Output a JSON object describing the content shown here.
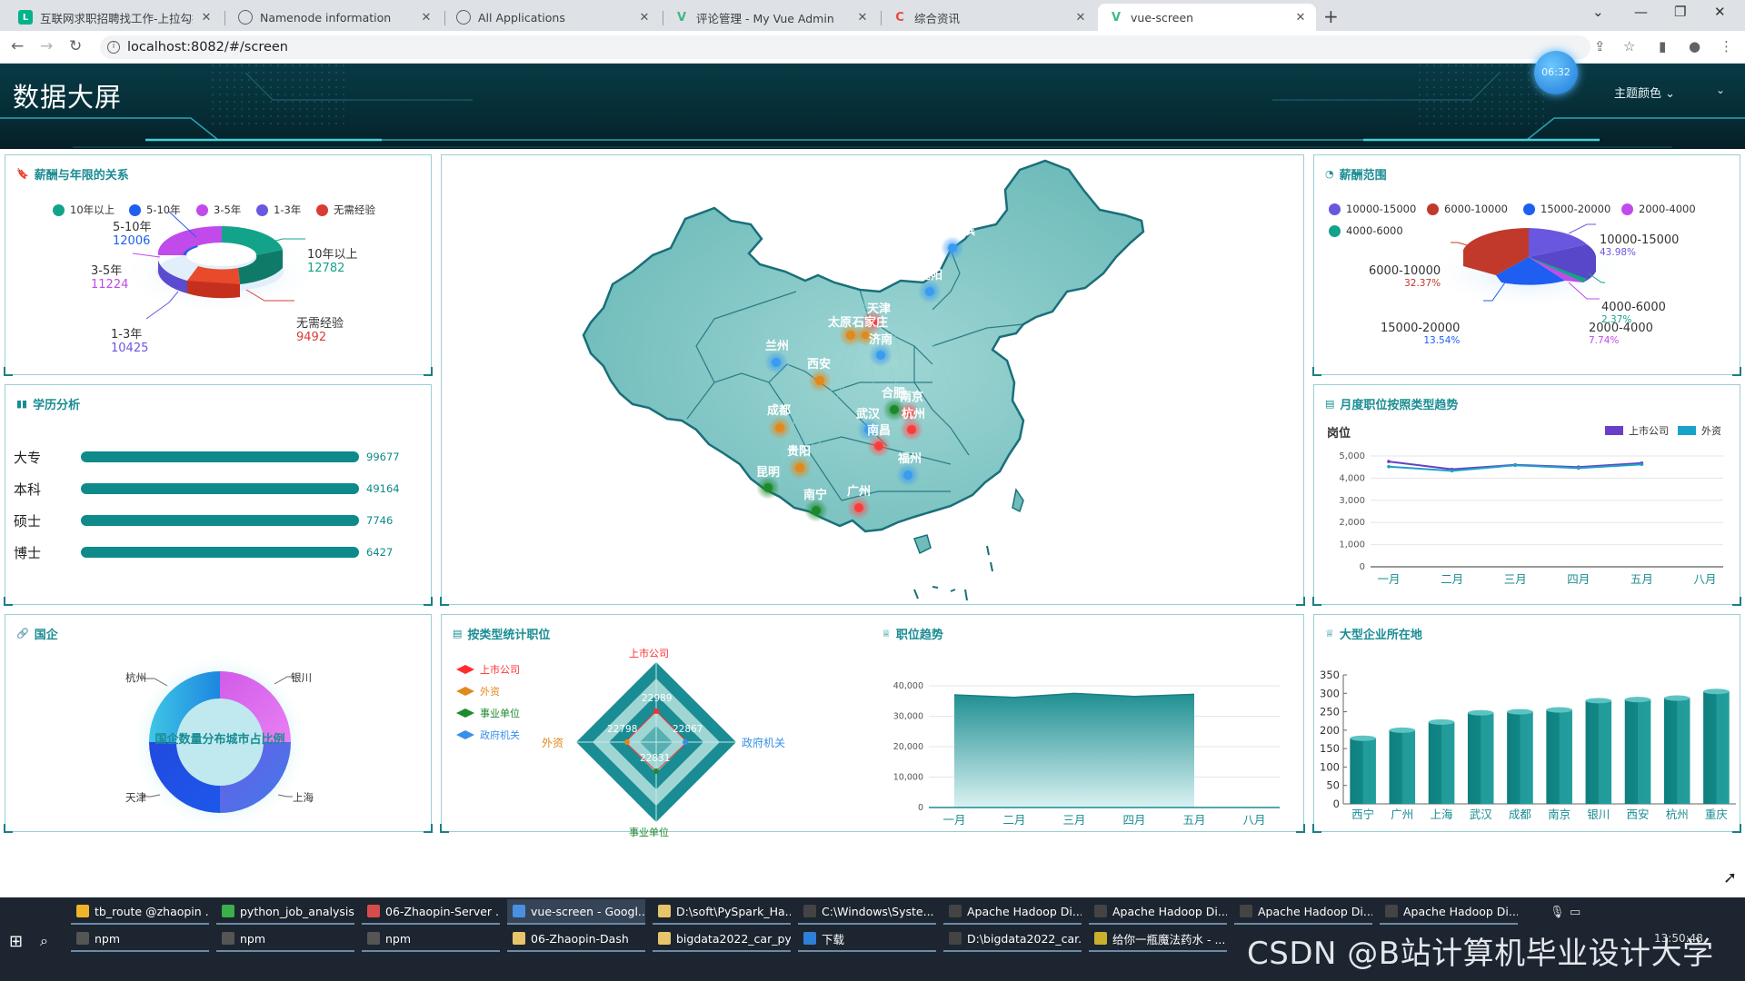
{
  "browser": {
    "tabs": [
      {
        "title": "互联网求职招聘找工作-上拉勾招",
        "icon": "L",
        "color": "#00b38a"
      },
      {
        "title": "Namenode information",
        "icon": "globe",
        "color": "#5f6368"
      },
      {
        "title": "All Applications",
        "icon": "globe",
        "color": "#5f6368"
      },
      {
        "title": "评论管理 - My Vue Admin",
        "icon": "V",
        "color": "#41b883"
      },
      {
        "title": "综合资讯",
        "icon": "C",
        "color": "#e74c3c"
      },
      {
        "title": "vue-screen",
        "icon": "V",
        "color": "#41b883"
      }
    ],
    "active_tab": 5,
    "url": "localhost:8082/#/screen"
  },
  "header": {
    "title": "数据大屏",
    "clock": "06:32",
    "theme_label": "主题颜色"
  },
  "salary_years": {
    "title": "薪酬与年限的关系",
    "legend": [
      "10年以上",
      "5-10年",
      "3-5年",
      "1-3年",
      "无需经验"
    ],
    "colors": [
      "#13a38a",
      "#1e5ef0",
      "#c04bea",
      "#6a57e0",
      "#d93c36"
    ],
    "labels": [
      {
        "name": "5-10年",
        "value": "12006"
      },
      {
        "name": "10年以上",
        "value": "12782"
      },
      {
        "name": "3-5年",
        "value": "11224"
      },
      {
        "name": "无需经验",
        "value": "9492"
      },
      {
        "name": "1-3年",
        "value": "10425"
      }
    ]
  },
  "education": {
    "title": "学历分析",
    "rows": [
      {
        "name": "大专",
        "value": "99677"
      },
      {
        "name": "本科",
        "value": "49164"
      },
      {
        "name": "硕士",
        "value": "7746"
      },
      {
        "name": "博士",
        "value": "6427"
      }
    ]
  },
  "state_owned": {
    "title": "国企",
    "center": "国企数量分布城市占比例",
    "labels": [
      "杭州",
      "银川",
      "天津",
      "上海"
    ]
  },
  "map": {
    "cities": [
      "哈尔滨",
      "沈阳",
      "天津",
      "太原",
      "石家庄",
      "济南",
      "兰州",
      "西安",
      "合肥",
      "南京",
      "成都",
      "武汉",
      "杭州",
      "南昌",
      "贵阳",
      "福州",
      "昆明",
      "南宁",
      "广州"
    ]
  },
  "salary_range": {
    "title": "薪酬范围",
    "legend": [
      "10000-15000",
      "6000-10000",
      "15000-20000",
      "2000-4000",
      "4000-6000"
    ],
    "colors": [
      "#6a57e0",
      "#c0392b",
      "#1e5ef0",
      "#c04bea",
      "#13a38a"
    ],
    "labels": [
      {
        "name": "10000-15000",
        "pct": "43.98%"
      },
      {
        "name": "6000-10000",
        "pct": "32.37%"
      },
      {
        "name": "4000-6000",
        "pct": "2.37%"
      },
      {
        "name": "2000-4000",
        "pct": "7.74%"
      },
      {
        "name": "15000-20000",
        "pct": "13.54%"
      }
    ]
  },
  "monthly_trend": {
    "title": "月度职位按照类型趋势",
    "y_title": "岗位",
    "legend": [
      "上市公司",
      "外资"
    ]
  },
  "type_stats": {
    "title": "按类型统计职位",
    "legend": [
      "上市公司",
      "外资",
      "事业单位",
      "政府机关"
    ],
    "legend_colors": [
      "#ff2d2d",
      "#e08a1e",
      "#1e8a2e",
      "#3a8fe8"
    ],
    "axes": {
      "top": "上市公司",
      "left": "外资",
      "right": "政府机关",
      "bottom": "事业单位"
    },
    "values": {
      "top": "22989",
      "left": "22798",
      "right": "22867",
      "bottom": "22831"
    }
  },
  "job_trend": {
    "title": "职位趋势"
  },
  "big_company": {
    "title": "大型企业所在地"
  },
  "chart_data": [
    {
      "type": "line",
      "title": "月度职位按照类型趋势",
      "ylabel": "岗位",
      "categories": [
        "一月",
        "二月",
        "三月",
        "四月",
        "五月",
        "八月"
      ],
      "ylim": [
        0,
        5000
      ],
      "yticks": [
        "0",
        "1,000",
        "2,000",
        "3,000",
        "4,000",
        "5,000"
      ],
      "series": [
        {
          "name": "上市公司",
          "color": "#6a3fc8",
          "values": [
            4750,
            4400,
            4600,
            4500,
            4680,
            null
          ]
        },
        {
          "name": "外资",
          "color": "#1aa3c8",
          "values": [
            4520,
            4330,
            4580,
            4450,
            4620,
            null
          ]
        }
      ]
    },
    {
      "type": "area",
      "title": "职位趋势",
      "categories": [
        "一月",
        "二月",
        "三月",
        "四月",
        "五月",
        "八月"
      ],
      "ylim": [
        0,
        40000
      ],
      "yticks": [
        "0",
        "10,000",
        "20,000",
        "30,000",
        "40,000"
      ],
      "values": [
        37000,
        36200,
        37500,
        36500,
        37200,
        null
      ]
    },
    {
      "type": "bar",
      "title": "大型企业所在地",
      "categories": [
        "西宁",
        "广州",
        "上海",
        "武汉",
        "成都",
        "南京",
        "银川",
        "西安",
        "杭州",
        "重庆"
      ],
      "ylim": [
        0,
        350
      ],
      "yticks": [
        "0",
        "50",
        "100",
        "150",
        "200",
        "250",
        "300",
        "350"
      ],
      "values": [
        178,
        200,
        222,
        247,
        250,
        255,
        280,
        283,
        287,
        305
      ]
    }
  ],
  "taskbar": {
    "row1": [
      "tb_route @zhaopin ...",
      "python_job_analysis...",
      "06-Zhaopin-Server ...",
      "vue-screen - Googl...",
      "D:\\soft\\PySpark_Ha...",
      "C:\\Windows\\Syste...",
      "Apache Hadoop Di...",
      "Apache Hadoop Di...",
      "Apache Hadoop Di...",
      "Apache Hadoop Di..."
    ],
    "row2": [
      "npm",
      "npm",
      "npm",
      "06-Zhaopin-Dash",
      "bigdata2022_car_py...",
      "下载",
      "D:\\bigdata2022_car...",
      "给你一瓶魔法药水 - ..."
    ],
    "time": "13:50:48",
    "watermark": "CSDN @B站计算机毕业设计大学"
  }
}
